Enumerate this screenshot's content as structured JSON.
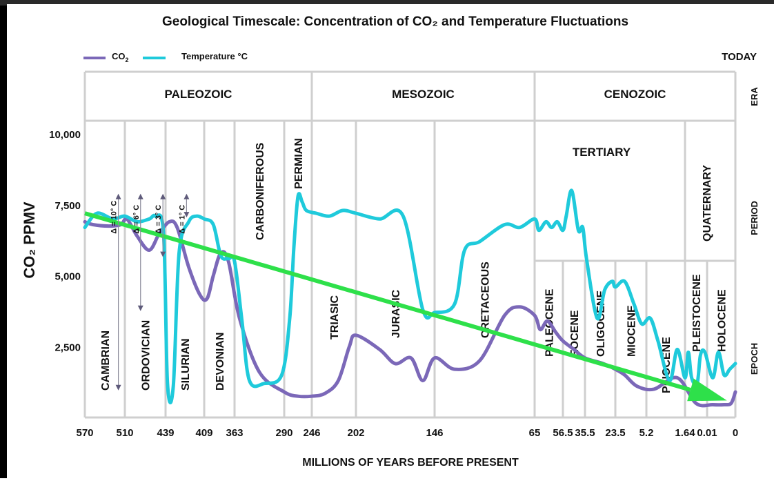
{
  "chart_data": {
    "type": "line",
    "title": "Geological Timescale: Concentration of CO₂ and Temperature Fluctuations",
    "xlabel": "MILLIONS OF YEARS BEFORE PRESENT",
    "ylabel": "CO₂ PPMV",
    "today_label": "TODAY",
    "y_ticks": [
      "10,000",
      "7,500",
      "5,000",
      "2,500"
    ],
    "y_tick_values": [
      10000,
      7500,
      5000,
      2500
    ],
    "ylim": [
      0,
      10000
    ],
    "x_ticks": [
      "570",
      "510",
      "439",
      "409",
      "363",
      "290",
      "246",
      "202",
      "146",
      "65",
      "56.5",
      "35.5",
      "23.5",
      "5.2",
      "1.64",
      "0.01",
      "0"
    ],
    "grid": true,
    "legend_placement": "top-left",
    "legend": [
      {
        "name": "CO₂",
        "label_main": "CO",
        "label_sub": "2",
        "color": "#7b68b8"
      },
      {
        "name": "Temperature °C",
        "label_main": "Temperature °C",
        "color": "#1fcadb"
      }
    ],
    "side_labels": [
      "ERA",
      "PERIOD",
      "EPOCH"
    ],
    "eras": [
      {
        "label": "PALEOZOIC",
        "from_tick": 0,
        "to_tick": 6
      },
      {
        "label": "MESOZOIC",
        "from_tick": 6,
        "to_tick": 9
      },
      {
        "label": "CENOZOIC",
        "from_tick": 9,
        "to_tick": 16
      }
    ],
    "periods_vertical": [
      {
        "label": "CARBONIFEROUS",
        "tick_index": 4.5
      },
      {
        "label": "PERMIAN",
        "tick_index": 5.5
      }
    ],
    "periods_horizontal": [
      {
        "label": "TERTIARY"
      }
    ],
    "periods_cenozoic_vertical": [
      {
        "label": "QUATERNARY"
      }
    ],
    "epochs": [
      {
        "label": "CAMBRIAN",
        "tick_index": 0.5
      },
      {
        "label": "ORDOVICIAN",
        "tick_index": 1.5
      },
      {
        "label": "SILURIAN",
        "tick_index": 2.5
      },
      {
        "label": "DEVONIAN",
        "tick_index": 3.5
      },
      {
        "label": "TRIASIC",
        "tick_index": 6.5
      },
      {
        "label": "JURASIC",
        "tick_index": 7.5
      },
      {
        "label": "CRETACEOUS",
        "tick_index": 8.5
      },
      {
        "label": "PALEOCENE",
        "tick_index": 9.5
      },
      {
        "label": "EOCENE",
        "tick_index": 10.5
      },
      {
        "label": "OLIGOCENE",
        "tick_index": 11.5
      },
      {
        "label": "MIOCENE",
        "tick_index": 12.5
      },
      {
        "label": "PLIOCENE",
        "tick_index": 13.5
      },
      {
        "label": "PLEISTOCENE",
        "tick_index": 14.5
      },
      {
        "label": "HOLOCENE",
        "tick_index": 15.5
      }
    ],
    "temperature_deltas": [
      {
        "label": "Δ = 10° C",
        "tick_index": 0.7,
        "arrow_from": 7500,
        "arrow_to": 1100
      },
      {
        "label": "Δ = 6° C",
        "tick_index": 1.25,
        "arrow_from": 7500,
        "arrow_to": 3900
      },
      {
        "label": "Δ = 3° C",
        "tick_index": 1.8,
        "arrow_from": 7500,
        "arrow_to": 5800
      },
      {
        "label": "Δ = 1° C",
        "tick_index": 2.4,
        "arrow_from": 7500,
        "arrow_to": 7200
      }
    ],
    "series": [
      {
        "name": "CO₂",
        "color": "#7b68b8",
        "points_tick_index": [
          0,
          0.2,
          0.6,
          0.9,
          1.05,
          1.3,
          1.6,
          1.85,
          2.1,
          2.3,
          2.6,
          2.9,
          3.1,
          3.3,
          3.55,
          3.8,
          4.1,
          4.5,
          5.0,
          5.5,
          6.0,
          6.3,
          6.6,
          6.85,
          7.0,
          7.3,
          7.5,
          7.7,
          7.85,
          8.0,
          8.2,
          8.45,
          8.7,
          8.85,
          9.0,
          9.2,
          9.45,
          9.75,
          10.0,
          10.5,
          11.0,
          11.6,
          12.0,
          12.3,
          12.7,
          13.2,
          13.8,
          14.5,
          15.2,
          15.6,
          15.85,
          16.0
        ],
        "values": [
          6900,
          6800,
          6750,
          6800,
          7000,
          6400,
          5900,
          6500,
          6900,
          6700,
          5300,
          4300,
          4200,
          5000,
          5800,
          5500,
          3500,
          1600,
          900,
          750,
          750,
          850,
          1300,
          2500,
          2900,
          2400,
          1900,
          2100,
          1300,
          2100,
          1700,
          2000,
          3600,
          3900,
          3600,
          3100,
          3400,
          3000,
          2700,
          2400,
          2100,
          1900,
          1700,
          1500,
          1100,
          1000,
          1400,
          500,
          450,
          450,
          500,
          900
        ]
      },
      {
        "name": "Temperature °C",
        "color": "#1fcadb",
        "points_tick_index": [
          0,
          0.3,
          0.7,
          1.0,
          1.3,
          1.6,
          1.75,
          1.95,
          2.05,
          2.2,
          2.35,
          2.6,
          2.8,
          3.0,
          3.3,
          3.55,
          3.8,
          4.0,
          4.15,
          4.3,
          4.6,
          4.95,
          5.2,
          5.35,
          5.5,
          5.65,
          5.8,
          6.1,
          6.4,
          6.7,
          7.0,
          7.3,
          7.6,
          7.85,
          8.0,
          8.2,
          8.3,
          8.45,
          8.7,
          8.85,
          9.0,
          9.15,
          9.4,
          9.6,
          9.8,
          10.0,
          10.15,
          10.4,
          10.7,
          10.9,
          11.05,
          11.4,
          11.65,
          11.9,
          12.0,
          12.3,
          12.6,
          12.85,
          13.1,
          13.3,
          13.6,
          13.8,
          14.0,
          14.15,
          14.3,
          14.55,
          14.7,
          14.9,
          15.2,
          15.4,
          15.6,
          15.8,
          16.0
        ],
        "values": [
          6700,
          7200,
          7000,
          7100,
          6900,
          7000,
          7100,
          6500,
          1200,
          1100,
          5800,
          6900,
          7100,
          7000,
          6800,
          5700,
          5600,
          5500,
          3400,
          1300,
          1200,
          1500,
          3500,
          6000,
          7800,
          7600,
          7300,
          7200,
          7100,
          7300,
          7200,
          7000,
          7100,
          3800,
          3700,
          4000,
          5900,
          6200,
          6800,
          6700,
          7000,
          6600,
          6900,
          6700,
          6900,
          6600,
          7100,
          8000,
          6600,
          6700,
          5600,
          3500,
          4500,
          4800,
          4600,
          4800,
          4000,
          3300,
          3500,
          2700,
          1300,
          2400,
          1400,
          2300,
          1400,
          1200,
          2200,
          2300,
          1400,
          2300,
          1500,
          1700,
          1900
        ]
      },
      {
        "name": "Trend",
        "color": "#2ee04a",
        "arrow": true,
        "points_tick_index": [
          0,
          15.7
        ],
        "values": [
          7200,
          600
        ]
      }
    ]
  }
}
